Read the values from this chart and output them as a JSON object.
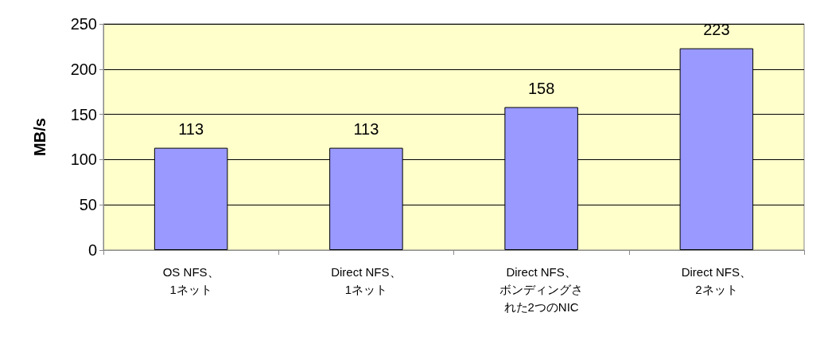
{
  "chart_data": {
    "type": "bar",
    "ylabel": "MB/s",
    "categories": [
      "OS NFS、1ネット",
      "Direct NFS、1ネット",
      "Direct NFS、ボンディングされた2つのNIC",
      "Direct NFS、2ネット"
    ],
    "values": [
      113,
      113,
      158,
      223
    ],
    "color": "#9999ff",
    "data_labels": true,
    "ylim": [
      0,
      250
    ],
    "yticks": [
      0,
      50,
      100,
      150,
      200,
      250
    ],
    "grid": "y"
  }
}
